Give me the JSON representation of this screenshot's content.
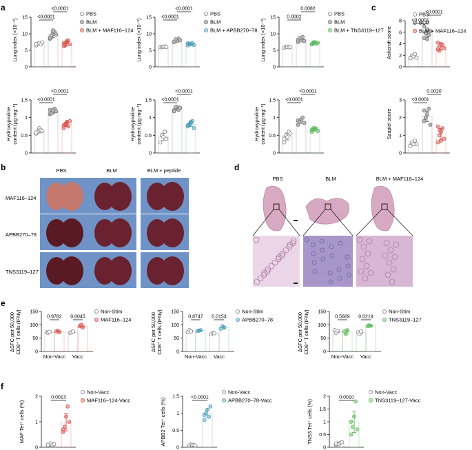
{
  "panel_letters": [
    "a",
    "b",
    "c",
    "d",
    "e",
    "f"
  ],
  "colors": {
    "pbs": "#7f7f7f",
    "blm": "#6e6e6e",
    "maf": "#d9534f",
    "apbb2": "#4f9fb8",
    "tns3": "#5cb85c",
    "lung_tissue": "#7a2432",
    "histo_pink": "#d8a9c2",
    "histo_blue": "#8c8cc8",
    "photo_bg": "#6f93c6"
  },
  "panel_a": {
    "legends": [
      [
        "PBS",
        "BLM",
        "BLM + MAF116–124"
      ],
      [
        "PBS",
        "BLM",
        "BLM + APBB270–78"
      ],
      [
        "PBS",
        "BLM",
        "BLM + TNS3119–127"
      ]
    ],
    "lung_index_ylabel": "Lung index (×10⁻³)",
    "hydroxyproline_ylabel_1": "Hydroxyproline",
    "hydroxyproline_ylabel_2": "content (μg mg⁻¹)",
    "pvals_lung": [
      [
        "<0.0001",
        "<0.0001"
      ],
      [
        "<0.0001",
        "<0.0001"
      ],
      [
        "0.0002",
        "0.0082"
      ]
    ],
    "pvals_hyp": [
      [
        "<0.0001",
        "<0.0001"
      ],
      [
        "<0.0001",
        "<0.0001"
      ],
      [
        "<0.0001",
        "<0.0001"
      ]
    ]
  },
  "panel_b": {
    "columns": [
      "PBS",
      "BLM",
      "BLM + peptide"
    ],
    "rows": [
      "MAF116–124",
      "APBB270–78",
      "TNS3119–127"
    ]
  },
  "panel_c": {
    "ashcroft_ylabel": "Ashcroft score",
    "szapiel_ylabel": "Szapiel score",
    "legend": [
      "PBS",
      "BLM",
      "BLM + MAF116–124"
    ],
    "pvals_ashcroft": [
      "<0.0001",
      "<0.0001"
    ],
    "pvals_szapiel": [
      "<0.0001",
      "0.0020"
    ]
  },
  "panel_d": {
    "columns": [
      "PBS",
      "BLM",
      "BLM + MAF116–124"
    ]
  },
  "panel_e": {
    "ylabel_1": "ΔSFC per 50,000",
    "ylabel_2": "CD8⁺ T cells (IFNγ)",
    "xcats": [
      "Non-Vacc",
      "Vacc"
    ],
    "legends": [
      [
        "Non-Stim",
        "MAF116–124"
      ],
      [
        "Non-Stim",
        "APBB270–78"
      ],
      [
        "Non-Stim",
        "TNS3119–127"
      ]
    ],
    "pvals": [
      [
        "0.9782",
        "0.0045"
      ],
      [
        "0.8747",
        "0.0153"
      ],
      [
        "0.5669",
        "0.0219"
      ]
    ]
  },
  "panel_f": {
    "ylabels": [
      "MAF Tet⁺ cells (%)",
      "APBB2 Tet⁺ cells (%)",
      "TNS3 Tet⁺ cells (%)"
    ],
    "legends": [
      [
        "Non-Vacc",
        "MAF116–124-Vacc"
      ],
      [
        "Non-Vacc",
        "APBB270–78-Vacc"
      ],
      [
        "Non-Vacc",
        "TNS3119–127-Vacc"
      ]
    ],
    "pvals": [
      "0.0013",
      "<0.0001",
      "0.0010"
    ]
  },
  "chart_data": [
    {
      "type": "scatter",
      "panel": "a-1",
      "ylabel": "Lung index (×10⁻³)",
      "ylim": [
        0,
        15
      ],
      "yticks": [
        0,
        5,
        10,
        15
      ],
      "series": [
        {
          "name": "PBS",
          "values": [
            6.5,
            7,
            7.2,
            6.8,
            7.4,
            6.9
          ]
        },
        {
          "name": "BLM",
          "values": [
            8.5,
            9,
            10,
            10.5,
            9.8,
            8.8,
            9.5,
            11
          ]
        },
        {
          "name": "BLM + MAF116–124",
          "values": [
            6.2,
            7,
            7.5,
            8,
            6.8,
            7.2,
            6.5,
            7.8
          ]
        }
      ]
    },
    {
      "type": "scatter",
      "panel": "a-2",
      "ylabel": "Lung index (×10⁻³)",
      "ylim": [
        0,
        15
      ],
      "yticks": [
        0,
        5,
        10,
        15
      ],
      "series": [
        {
          "name": "PBS",
          "values": [
            5.9,
            6.1,
            6,
            6.2,
            6
          ]
        },
        {
          "name": "BLM",
          "values": [
            7.5,
            8.2,
            7.8,
            8.5,
            8,
            7.6,
            8.3
          ]
        },
        {
          "name": "BLM + APBB270–78",
          "values": [
            6.5,
            7,
            6.8,
            7.2,
            6.6,
            7.1,
            6.9
          ]
        }
      ]
    },
    {
      "type": "scatter",
      "panel": "a-3",
      "ylabel": "Lung index (×10⁻³)",
      "ylim": [
        0,
        15
      ],
      "yticks": [
        0,
        5,
        10,
        15
      ],
      "series": [
        {
          "name": "PBS",
          "values": [
            5.8,
            6,
            6.1,
            5.9,
            6
          ]
        },
        {
          "name": "BLM",
          "values": [
            7.5,
            8.5,
            8,
            9,
            7.8,
            8.2,
            8.7
          ]
        },
        {
          "name": "BLM + TNS3119–127",
          "values": [
            6.8,
            7.2,
            7.5,
            7,
            7.3,
            6.9,
            7.4
          ]
        }
      ]
    },
    {
      "type": "scatter",
      "panel": "c-1",
      "ylabel": "Ashcroft score",
      "ylim": [
        0,
        8
      ],
      "yticks": [
        0,
        2,
        4,
        6,
        8
      ],
      "series": [
        {
          "name": "PBS",
          "values": [
            1.5,
            2,
            1.8,
            2.2,
            1.6
          ]
        },
        {
          "name": "BLM",
          "values": [
            5,
            6,
            6.5,
            5.5,
            6.2,
            7,
            5.8,
            4.8
          ]
        },
        {
          "name": "BLM + MAF116–124",
          "values": [
            3,
            3.5,
            4,
            3.8,
            3.2,
            4.2,
            2.8
          ]
        }
      ]
    },
    {
      "type": "scatter",
      "panel": "a-4",
      "ylabel": "Hydroxyproline content (μg mg⁻¹)",
      "ylim": [
        0,
        1.5
      ],
      "yticks": [
        0,
        0.5,
        1.0,
        1.5
      ],
      "series": [
        {
          "name": "PBS",
          "values": [
            0.55,
            0.6,
            0.7,
            0.65,
            0.62,
            0.58
          ]
        },
        {
          "name": "BLM",
          "values": [
            1.1,
            1.2,
            1.15,
            1.25,
            1.18,
            1.22,
            1.12,
            1.2
          ]
        },
        {
          "name": "BLM + MAF116–124",
          "values": [
            0.7,
            0.8,
            0.85,
            0.75,
            0.9,
            0.78,
            0.82,
            0.88
          ]
        }
      ]
    },
    {
      "type": "scatter",
      "panel": "a-5",
      "ylabel": "Hydroxyproline content (μg mg⁻¹)",
      "ylim": [
        0,
        1.5
      ],
      "yticks": [
        0,
        0.5,
        1.0,
        1.5
      ],
      "series": [
        {
          "name": "PBS",
          "values": [
            0.3,
            0.5,
            0.45,
            0.6,
            0.4
          ]
        },
        {
          "name": "BLM",
          "values": [
            1.2,
            1.25,
            1.3,
            1.22,
            1.28,
            1.18,
            1.3
          ]
        },
        {
          "name": "BLM + APBB270–78",
          "values": [
            0.75,
            0.8,
            0.85,
            0.9,
            0.7,
            0.78,
            0.82,
            0.88
          ]
        }
      ]
    },
    {
      "type": "scatter",
      "panel": "a-6",
      "ylabel": "Hydroxyproline content (μg mg⁻¹)",
      "ylim": [
        0,
        1.5
      ],
      "yticks": [
        0,
        0.5,
        1.0,
        1.5
      ],
      "series": [
        {
          "name": "PBS",
          "values": [
            0.4,
            0.5,
            0.45,
            0.6,
            0.55,
            0.3
          ]
        },
        {
          "name": "BLM",
          "values": [
            0.8,
            0.9,
            0.95,
            1.0,
            0.85,
            0.92,
            0.88
          ]
        },
        {
          "name": "BLM + TNS3119–127",
          "values": [
            0.6,
            0.65,
            0.7,
            0.68,
            0.62,
            0.66,
            0.7
          ]
        }
      ]
    },
    {
      "type": "scatter",
      "panel": "c-2",
      "ylabel": "Szapiel score",
      "ylim": [
        0,
        3
      ],
      "yticks": [
        0,
        1,
        2,
        3
      ],
      "series": [
        {
          "name": "PBS",
          "values": [
            0.4,
            0.6,
            0.5,
            0.7,
            0.5
          ]
        },
        {
          "name": "BLM",
          "values": [
            1.8,
            2,
            2.2,
            2.5,
            1.6,
            2.4,
            2
          ]
        },
        {
          "name": "BLM + MAF116–124",
          "values": [
            0.6,
            1,
            1.2,
            1.4,
            0.8,
            1.5,
            1.3,
            0.7
          ]
        }
      ]
    },
    {
      "type": "scatter",
      "panel": "e-1",
      "ylabel": "ΔSFC per 50,000 CD8⁺ T cells (IFNγ)",
      "ylim": [
        0,
        150
      ],
      "yticks": [
        0,
        50,
        100,
        150
      ],
      "categories": [
        "Non-Vacc",
        "Vacc"
      ],
      "series": [
        {
          "name": "Non-Stim",
          "values": [
            [
              72,
              70,
              74
            ],
            [
              70,
              72,
              75
            ]
          ]
        },
        {
          "name": "MAF116–124",
          "values": [
            [
              75,
              78,
              72
            ],
            [
              95,
              100,
              90
            ]
          ]
        }
      ]
    },
    {
      "type": "scatter",
      "panel": "e-2",
      "ylabel": "ΔSFC per 50,000 CD8⁺ T cells (IFNγ)",
      "ylim": [
        0,
        150
      ],
      "yticks": [
        0,
        50,
        100,
        150
      ],
      "categories": [
        "Non-Vacc",
        "Vacc"
      ],
      "series": [
        {
          "name": "Non-Stim",
          "values": [
            [
              72,
              80,
              75
            ],
            [
              65,
              70,
              68
            ]
          ]
        },
        {
          "name": "APBB270–78",
          "values": [
            [
              77,
              78,
              80
            ],
            [
              85,
              95,
              90
            ]
          ]
        }
      ]
    },
    {
      "type": "scatter",
      "panel": "e-3",
      "ylabel": "ΔSFC per 50,000 CD8⁺ T cells (IFNγ)",
      "ylim": [
        0,
        150
      ],
      "yticks": [
        0,
        50,
        100,
        150
      ],
      "categories": [
        "Non-Vacc",
        "Vacc"
      ],
      "series": [
        {
          "name": "Non-Stim",
          "values": [
            [
              80,
              70,
              78
            ],
            [
              72,
              65,
              75
            ]
          ]
        },
        {
          "name": "TNS3119–127",
          "values": [
            [
              75,
              65,
              80
            ],
            [
              95,
              98,
              96
            ]
          ]
        }
      ]
    },
    {
      "type": "scatter",
      "panel": "f-1",
      "ylabel": "MAF Tet⁺ cells (%)",
      "ylim": [
        0,
        2
      ],
      "yticks": [
        0,
        1,
        2
      ],
      "series": [
        {
          "name": "Non-Vacc",
          "values": [
            0.05,
            0.1,
            0.15,
            0.08,
            0.12,
            0.1
          ]
        },
        {
          "name": "MAF116–124-Vacc",
          "values": [
            0.6,
            0.8,
            1.2,
            1.6,
            1.0,
            0.7
          ]
        }
      ]
    },
    {
      "type": "scatter",
      "panel": "f-2",
      "ylabel": "APBB2 Tet⁺ cells (%)",
      "ylim": [
        0,
        1.5
      ],
      "yticks": [
        0,
        0.5,
        1.0,
        1.5
      ],
      "series": [
        {
          "name": "Non-Vacc",
          "values": [
            0.05,
            0.08,
            0.06,
            0.07,
            0.05
          ]
        },
        {
          "name": "APBB270–78-Vacc",
          "values": [
            0.8,
            1.0,
            1.1,
            0.9,
            1.2,
            0.95
          ]
        }
      ]
    },
    {
      "type": "scatter",
      "panel": "f-3",
      "ylabel": "TNS3 Tet⁺ cells (%)",
      "ylim": [
        0,
        2
      ],
      "yticks": [
        0,
        0.5,
        1.0,
        1.5,
        2.0
      ],
      "series": [
        {
          "name": "Non-Vacc",
          "values": [
            0.1,
            0.15,
            0.12,
            0.18,
            0.2,
            0.14
          ]
        },
        {
          "name": "TNS3119–127-Vacc",
          "values": [
            0.5,
            0.8,
            1.2,
            1.8,
            0.7,
            1.0
          ]
        }
      ]
    }
  ]
}
